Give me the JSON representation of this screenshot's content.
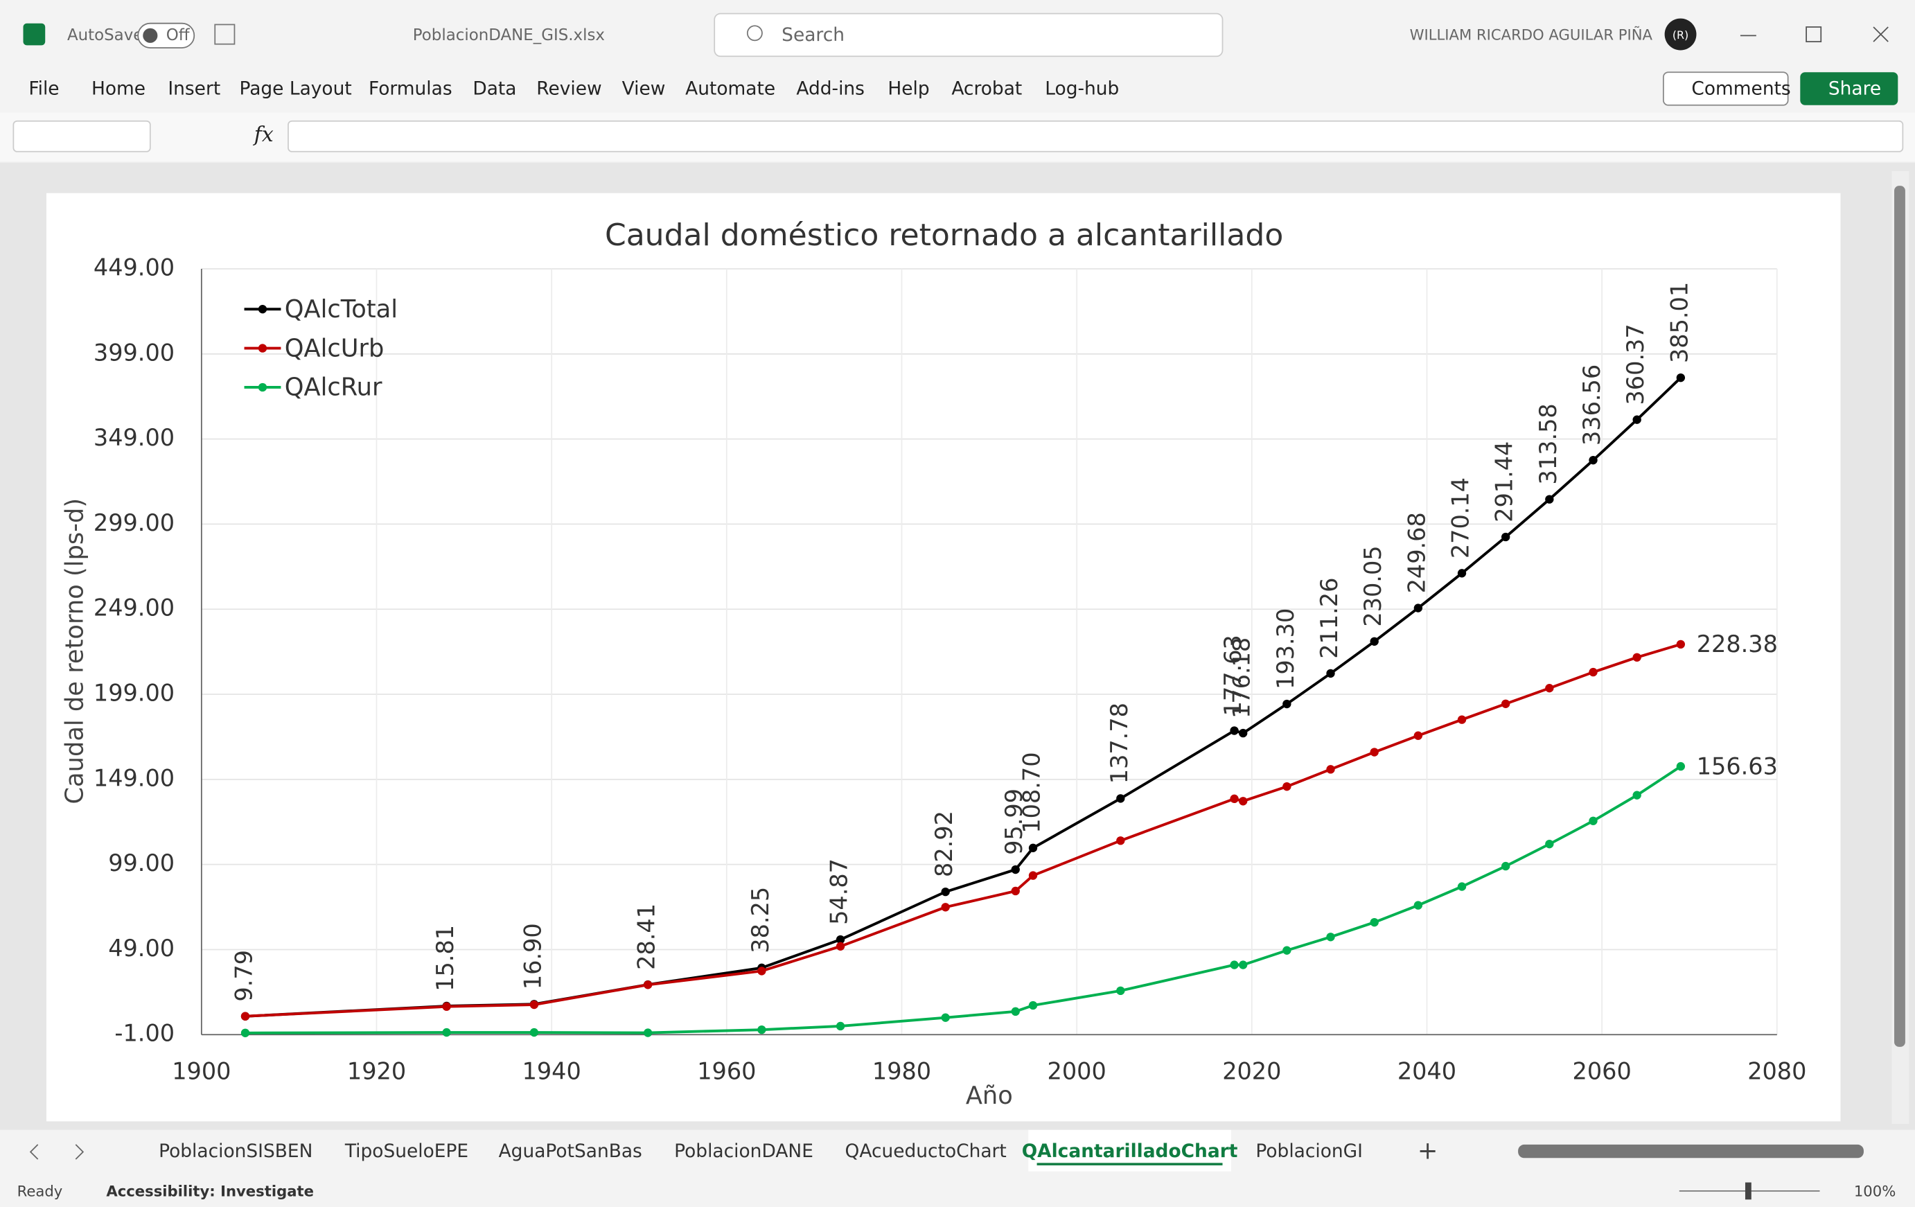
{
  "ui": {
    "autosave": "AutoSave",
    "autosave_state": "Off",
    "filename": "PoblacionDANE_GIS.xlsx",
    "search": "Search",
    "user": "WILLIAM RICARDO AGUILAR PIÑA",
    "avatar": "(R)",
    "menu": [
      "File",
      "Home",
      "Insert",
      "Page Layout",
      "Formulas",
      "Data",
      "Review",
      "View",
      "Automate",
      "Add-ins",
      "Help",
      "Acrobat",
      "Log-hub"
    ],
    "comments": "Comments",
    "share": "Share",
    "fx": "fx",
    "sheets": [
      "PoblacionSISBEN",
      "TipoSueloEPE",
      "AguaPotSanBas",
      "PoblacionDANE",
      "QAcueductoChart",
      "QAlcantarilladoChart",
      "PoblacionGI"
    ],
    "active_sheet": 5,
    "status": "Ready",
    "accessibility": "Accessibility: Investigate",
    "zoom": "100%"
  },
  "chart_data": {
    "type": "line",
    "title": "Caudal doméstico retornado a alcantarillado",
    "x_label": "Año",
    "y_label": "Caudal de retorno (lps-d)",
    "x": [
      1905,
      1928,
      1938,
      1951,
      1964,
      1973,
      1985,
      1993,
      1995,
      2005,
      2018,
      2019,
      2024,
      2029,
      2034,
      2039,
      2044,
      2049,
      2054,
      2059,
      2064,
      2069
    ],
    "series": [
      {
        "name": "QAlcTotal",
        "color": "#000000",
        "values": [
          9.79,
          15.81,
          16.9,
          28.41,
          38.25,
          54.87,
          82.92,
          95.99,
          108.7,
          137.78,
          177.63,
          176.18,
          193.3,
          211.26,
          230.05,
          249.68,
          270.14,
          291.44,
          313.58,
          336.56,
          360.37,
          385.01
        ],
        "value_labels": [
          "9.79",
          "15.81",
          "16.90",
          "28.41",
          "38.25",
          "54.87",
          "82.92",
          "95.99",
          "108.70",
          "137.78",
          "177.63",
          "176.18",
          "193.30",
          "211.26",
          "230.05",
          "249.68",
          "270.14",
          "291.44",
          "313.58",
          "336.56",
          "360.37",
          "385.01"
        ]
      },
      {
        "name": "QAlcUrb",
        "color": "#c00000",
        "values": [
          9.8,
          15.5,
          16.6,
          28.3,
          36.4,
          50.9,
          73.9,
          83.4,
          92.5,
          113,
          137.6,
          136.2,
          144.8,
          154.9,
          165,
          174.7,
          184.1,
          193.4,
          202.6,
          212,
          220.7,
          228.38
        ]
      },
      {
        "name": "QAlcRur",
        "color": "#00b050",
        "values": [
          0,
          0.3,
          0.3,
          0.1,
          1.9,
          4,
          9,
          12.6,
          16.2,
          24.8,
          40,
          40,
          48.5,
          56.4,
          65,
          75,
          86,
          98,
          111,
          124.6,
          139.7,
          156.63
        ]
      }
    ],
    "xlim": [
      1900,
      2080
    ],
    "xticks": [
      1900,
      1920,
      1940,
      1960,
      1980,
      2000,
      2020,
      2040,
      2060,
      2080
    ],
    "ylim": [
      -1,
      449
    ],
    "yticks": [
      {
        "value": -1,
        "label": "-1.00"
      },
      {
        "value": 49,
        "label": "49.00"
      },
      {
        "value": 99,
        "label": "99.00"
      },
      {
        "value": 149,
        "label": "149.00"
      },
      {
        "value": 199,
        "label": "199.00"
      },
      {
        "value": 249,
        "label": "249.00"
      },
      {
        "value": 299,
        "label": "299.00"
      },
      {
        "value": 349,
        "label": "349.00"
      },
      {
        "value": 399,
        "label": "399.00"
      },
      {
        "value": 449,
        "label": "449.00"
      }
    ],
    "grid": true,
    "legend": "top-left"
  }
}
